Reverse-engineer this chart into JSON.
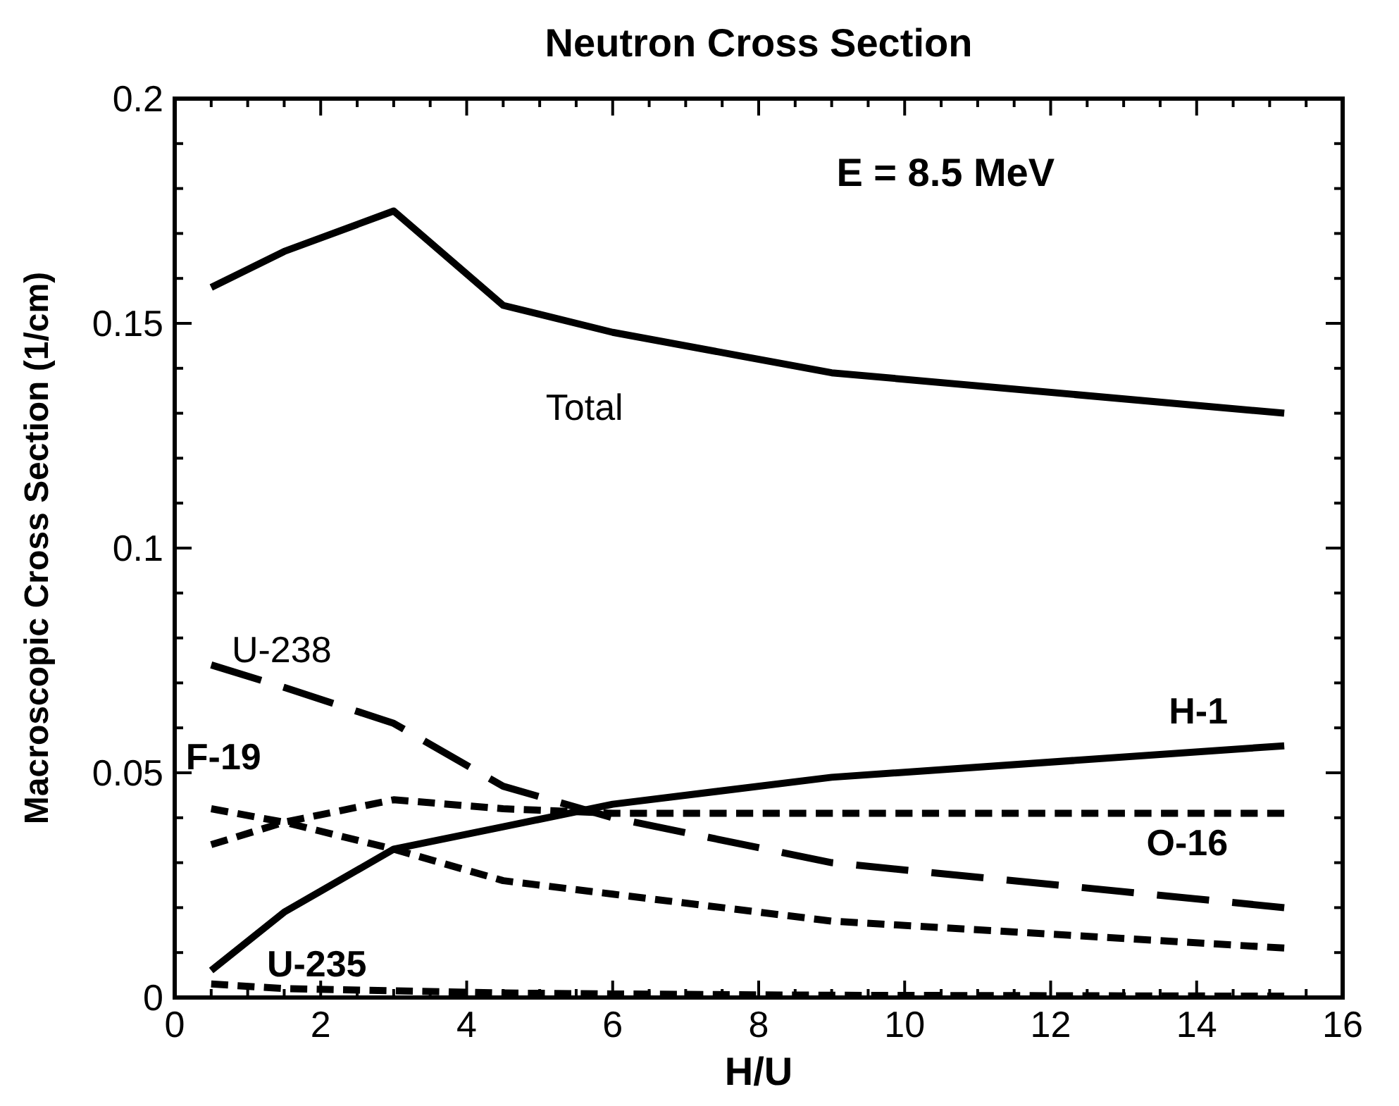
{
  "chart_data": {
    "type": "line",
    "title": "Neutron Cross Section",
    "xlabel": "H/U",
    "ylabel": "Macroscopic Cross Section (1/cm)",
    "annotations": [
      "E = 8.5 MeV"
    ],
    "x": [
      0.5,
      1.5,
      3,
      4.5,
      6,
      9,
      15.2
    ],
    "xlim": [
      0,
      16
    ],
    "ylim": [
      0,
      0.2
    ],
    "xticks": [
      0,
      {
        "value": 0.5,
        "label": null
      },
      {
        "value": 1,
        "label": null
      },
      {
        "value": 1.5,
        "label": null
      },
      2,
      {
        "value": 2.5,
        "label": null
      },
      {
        "value": 3,
        "label": null
      },
      {
        "value": 3.5,
        "label": null
      },
      4,
      {
        "value": 4.5,
        "label": null
      },
      {
        "value": 5,
        "label": null
      },
      {
        "value": 5.5,
        "label": null
      },
      6,
      {
        "value": 6.5,
        "label": null
      },
      {
        "value": 7,
        "label": null
      },
      {
        "value": 7.5,
        "label": null
      },
      8,
      {
        "value": 8.5,
        "label": null
      },
      {
        "value": 9,
        "label": null
      },
      {
        "value": 9.5,
        "label": null
      },
      10,
      {
        "value": 10.5,
        "label": null
      },
      {
        "value": 11,
        "label": null
      },
      {
        "value": 11.5,
        "label": null
      },
      12,
      {
        "value": 12.5,
        "label": null
      },
      {
        "value": 13,
        "label": null
      },
      {
        "value": 13.5,
        "label": null
      },
      14,
      {
        "value": 14.5,
        "label": null
      },
      {
        "value": 15,
        "label": null
      },
      {
        "value": 15.5,
        "label": null
      },
      16
    ],
    "yticks": [
      0,
      {
        "value": 0.01,
        "label": null
      },
      {
        "value": 0.02,
        "label": null
      },
      {
        "value": 0.03,
        "label": null
      },
      {
        "value": 0.04,
        "label": null
      },
      0.05,
      {
        "value": 0.06,
        "label": null
      },
      {
        "value": 0.07,
        "label": null
      },
      {
        "value": 0.08,
        "label": null
      },
      {
        "value": 0.09,
        "label": null
      },
      0.1,
      {
        "value": 0.11,
        "label": null
      },
      {
        "value": 0.12,
        "label": null
      },
      {
        "value": 0.13,
        "label": null
      },
      {
        "value": 0.14,
        "label": null
      },
      0.15,
      {
        "value": 0.16,
        "label": null
      },
      {
        "value": 0.17,
        "label": null
      },
      {
        "value": 0.18,
        "label": null
      },
      {
        "value": 0.19,
        "label": null
      },
      0.2
    ],
    "grid": false,
    "marker": "none",
    "series": [
      {
        "name": "Total",
        "color": "#000000",
        "line_style": "solid",
        "values": [
          0.158,
          0.166,
          0.175,
          0.154,
          0.148,
          0.139,
          0.13
        ]
      },
      {
        "name": "H-1",
        "color": "#000000",
        "line_style": "solid",
        "values": [
          0.006,
          0.019,
          0.033,
          0.038,
          0.043,
          0.049,
          0.056
        ]
      },
      {
        "name": "U-238",
        "color": "#000000",
        "line_style": "dashed",
        "values": [
          0.074,
          0.069,
          0.061,
          0.047,
          0.04,
          0.03,
          0.02
        ]
      },
      {
        "name": "O-16",
        "color": "#000000",
        "line_style": "dashed",
        "values": [
          0.034,
          0.039,
          0.044,
          0.042,
          0.041,
          0.041,
          0.041
        ]
      },
      {
        "name": "F-19",
        "color": "#000000",
        "line_style": "dashed",
        "values": [
          0.042,
          0.039,
          0.033,
          0.026,
          0.023,
          0.017,
          0.011
        ]
      },
      {
        "name": "U-235",
        "color": "#000000",
        "line_style": "dashed",
        "values": [
          0.003,
          0.002,
          0.0015,
          0.001,
          0.0008,
          0.0005,
          0.0003
        ]
      }
    ]
  }
}
